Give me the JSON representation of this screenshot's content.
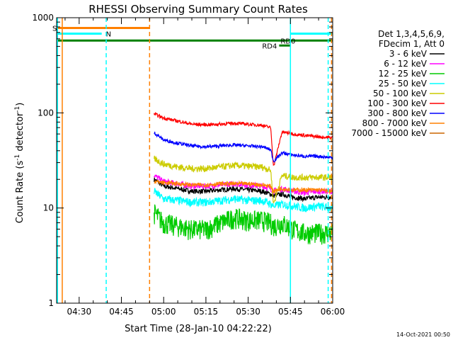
{
  "chart_data": {
    "type": "line",
    "title": "RHESSI Observing Summary Count Rates",
    "xlabel": "Start Time (28-Jan-10 04:22:22)",
    "ylabel_main": "Count Rate (s",
    "ylabel_sup1": "-1",
    "ylabel_mid": " detector",
    "ylabel_sup2": "-1",
    "ylabel_end": ")",
    "yscale": "log",
    "ylim": [
      1,
      1000
    ],
    "xlim_min": [
      262,
      360
    ],
    "xticks_min": [
      270,
      285,
      300,
      315,
      330,
      345,
      360
    ],
    "xtick_labels": [
      "04:30",
      "04:45",
      "05:00",
      "05:15",
      "05:30",
      "05:45",
      "06:00"
    ],
    "yticks": [
      1,
      10,
      100,
      1000
    ],
    "ytick_labels": [
      "1",
      "10",
      "100",
      "1000"
    ],
    "legend": {
      "placement": "top-right",
      "header1": "Det 1,3,4,5,6,9,",
      "header2": "FDecim 1, Att 0",
      "entries": [
        {
          "label": "3 - 6 keV",
          "color": "#000000"
        },
        {
          "label": "6 - 12 keV",
          "color": "#ff00ff"
        },
        {
          "label": "12 - 25 keV",
          "color": "#00cc00"
        },
        {
          "label": "25 - 50 keV",
          "color": "#00ffff"
        },
        {
          "label": "50 - 100 keV",
          "color": "#cccc00"
        },
        {
          "label": "100 - 300 keV",
          "color": "#ff0000"
        },
        {
          "label": "300 - 800 keV",
          "color": "#0000ff"
        },
        {
          "label": "800 - 7000 keV",
          "color": "#ff8000"
        },
        {
          "label": "7000 - 15000 keV",
          "color": "#cc6600"
        }
      ]
    },
    "data_start_min": 296.6,
    "x": [
      296.6,
      300,
      305,
      310,
      315,
      320,
      325,
      330,
      335,
      338,
      339,
      342,
      346,
      350,
      355,
      359
    ],
    "series": [
      {
        "name": "3 - 6 keV",
        "color": "#000000",
        "values": [
          20,
          17,
          16,
          15,
          15,
          15.5,
          16,
          15.5,
          15,
          14,
          13.5,
          14,
          13,
          12.5,
          13,
          13
        ]
      },
      {
        "name": "6 - 12 keV",
        "color": "#ff00ff",
        "values": [
          22,
          19,
          18,
          17,
          17,
          17.5,
          18,
          17.5,
          17,
          16,
          15,
          16,
          15,
          14.5,
          15,
          15
        ]
      },
      {
        "name": "12 - 25 keV",
        "color": "#00cc00",
        "values": [
          9,
          7,
          6.5,
          6,
          6,
          7,
          8,
          7.5,
          7.5,
          7,
          6.5,
          7,
          6,
          5.5,
          5.5,
          5.5
        ]
      },
      {
        "name": "25 - 50 keV",
        "color": "#00ffff",
        "values": [
          15,
          12.5,
          12,
          11.5,
          11.5,
          12,
          12.5,
          12,
          12,
          11,
          10.5,
          11,
          10.5,
          10,
          10.5,
          10
        ]
      },
      {
        "name": "50 - 100 keV",
        "color": "#cccc00",
        "values": [
          33,
          29,
          27,
          26,
          26,
          27,
          28,
          27.5,
          27,
          25,
          11,
          22,
          21,
          21,
          21,
          21
        ]
      },
      {
        "name": "100 - 300 keV",
        "color": "#ff0000",
        "values": [
          98,
          88,
          82,
          76,
          75,
          76,
          78,
          76,
          74,
          70,
          27,
          63,
          60,
          58,
          56,
          55
        ]
      },
      {
        "name": "300 - 800 keV",
        "color": "#0000ff",
        "values": [
          62,
          52,
          48,
          45,
          44,
          45,
          46,
          45,
          44,
          41,
          31,
          38,
          36,
          35,
          35,
          34
        ]
      },
      {
        "name": "800 - 7000 keV",
        "color": "#ff8000",
        "values": [
          19,
          18.5,
          18,
          17.5,
          17.5,
          18,
          18,
          18,
          17.5,
          17,
          15,
          16,
          15.5,
          15.5,
          15.5,
          15
        ]
      }
    ],
    "top_bars": [
      {
        "label": "S",
        "color": "#ff8000",
        "x0": 262,
        "x1": 295,
        "y": 780
      },
      {
        "label": "N",
        "color": "#00ffff",
        "x0": 262,
        "x1": 278,
        "y": 680
      },
      {
        "label": "N",
        "color": "#00ffff",
        "x0": 345,
        "x1": 360,
        "y": 680
      },
      {
        "label": "RD0",
        "color": "#008000",
        "x0": 262,
        "x1": 360,
        "y": 575
      },
      {
        "label": "RD4",
        "color": "#008000",
        "x0": 341,
        "x1": 345,
        "y": 510
      }
    ],
    "vlines": [
      {
        "x": 262.3,
        "color": "#00ffff",
        "style": "solid"
      },
      {
        "x": 264.0,
        "color": "#ff8000",
        "style": "solid"
      },
      {
        "x": 279.6,
        "color": "#00ffff",
        "style": "dashed"
      },
      {
        "x": 295.0,
        "color": "#ff8000",
        "style": "dashed"
      },
      {
        "x": 345.0,
        "color": "#00ffff",
        "style": "solid"
      },
      {
        "x": 358.4,
        "color": "#00ffff",
        "style": "dashed"
      },
      {
        "x": 359.6,
        "color": "#ff8000",
        "style": "dashed"
      }
    ]
  },
  "footer": {
    "timestamp": "14-Oct-2021 00:50"
  }
}
